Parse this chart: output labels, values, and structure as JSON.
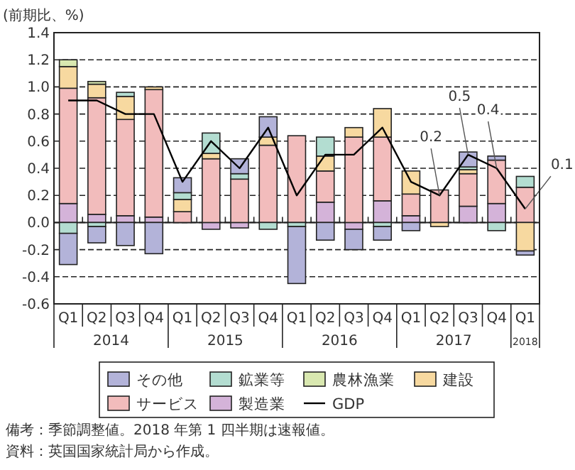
{
  "chart_data": {
    "type": "bar",
    "stacked": true,
    "ylabel": "(前期比、%)",
    "categories": [
      "Q1",
      "Q2",
      "Q3",
      "Q4",
      "Q1",
      "Q2",
      "Q3",
      "Q4",
      "Q1",
      "Q2",
      "Q3",
      "Q4",
      "Q1",
      "Q2",
      "Q3",
      "Q4",
      "Q1"
    ],
    "series": [
      {
        "name": "製造業",
        "color": "#d4b3d9",
        "values": [
          0.14,
          0.06,
          0.05,
          0.04,
          null,
          -0.05,
          -0.04,
          null,
          null,
          0.15,
          -0.05,
          0.16,
          0.05,
          null,
          0.12,
          0.14,
          null
        ]
      },
      {
        "name": "サービス",
        "color": "#f2bcbc",
        "values": [
          0.85,
          0.86,
          0.71,
          0.94,
          0.08,
          0.47,
          0.32,
          0.57,
          0.64,
          0.23,
          0.63,
          0.47,
          0.16,
          0.24,
          0.24,
          0.32,
          0.26
        ]
      },
      {
        "name": "建設",
        "color": "#f7d9a0",
        "values": [
          0.16,
          0.1,
          0.17,
          0.02,
          0.09,
          0.04,
          null,
          0.06,
          null,
          0.11,
          0.07,
          0.21,
          0.17,
          -0.03,
          0.03,
          null,
          -0.21
        ]
      },
      {
        "name": "農林漁業",
        "color": "#d9e8b0",
        "values": [
          0.05,
          0.02,
          null,
          null,
          null,
          null,
          null,
          null,
          null,
          null,
          null,
          null,
          null,
          null,
          null,
          null,
          null
        ]
      },
      {
        "name": "鉱業等",
        "color": "#b3ddd1",
        "values": [
          -0.08,
          -0.03,
          0.03,
          null,
          0.05,
          0.15,
          0.04,
          -0.05,
          -0.03,
          0.14,
          null,
          -0.03,
          null,
          null,
          0.02,
          -0.06,
          0.08
        ]
      },
      {
        "name": "その他",
        "color": "#b3b3d9",
        "values": [
          -0.23,
          -0.12,
          -0.17,
          -0.23,
          0.11,
          null,
          0.11,
          0.15,
          -0.42,
          -0.13,
          -0.15,
          -0.1,
          -0.06,
          null,
          0.11,
          0.03,
          -0.03
        ]
      },
      {
        "name": "GDP",
        "type": "line",
        "color": "#000000",
        "values": [
          0.9,
          0.9,
          0.8,
          0.8,
          0.3,
          0.6,
          0.4,
          0.7,
          0.2,
          0.5,
          0.5,
          0.7,
          0.3,
          0.2,
          0.5,
          0.4,
          0.1
        ],
        "value_labels": [
          null,
          null,
          null,
          null,
          null,
          null,
          null,
          null,
          null,
          null,
          null,
          null,
          null,
          "0.2",
          "0.5",
          "0.4",
          "0.1"
        ]
      }
    ],
    "ylim": [
      -0.6,
      1.4
    ],
    "yticks": [
      {
        "value": -0.6,
        "label": "-0.6"
      },
      {
        "value": -0.4,
        "label": "-0.4"
      },
      {
        "value": -0.2,
        "label": "-0.2"
      },
      {
        "value": 0,
        "label": "0.0"
      },
      {
        "value": 0.2,
        "label": "0.2"
      },
      {
        "value": 0.4,
        "label": "0.4"
      },
      {
        "value": 0.6,
        "label": "0.6"
      },
      {
        "value": 0.8,
        "label": "0.8"
      },
      {
        "value": 1,
        "label": "1.0"
      },
      {
        "value": 1.2,
        "label": "1.2"
      },
      {
        "value": 1.4,
        "label": "1.4"
      }
    ],
    "grid": "y",
    "legend": "bottom",
    "annotations": [
      "2014",
      "2015",
      "2016",
      "2017",
      "2018",
      "備考：季節調整値。2018 年第 1 四半期は速報値。",
      "資料：英国国家統計局から作成。"
    ]
  }
}
